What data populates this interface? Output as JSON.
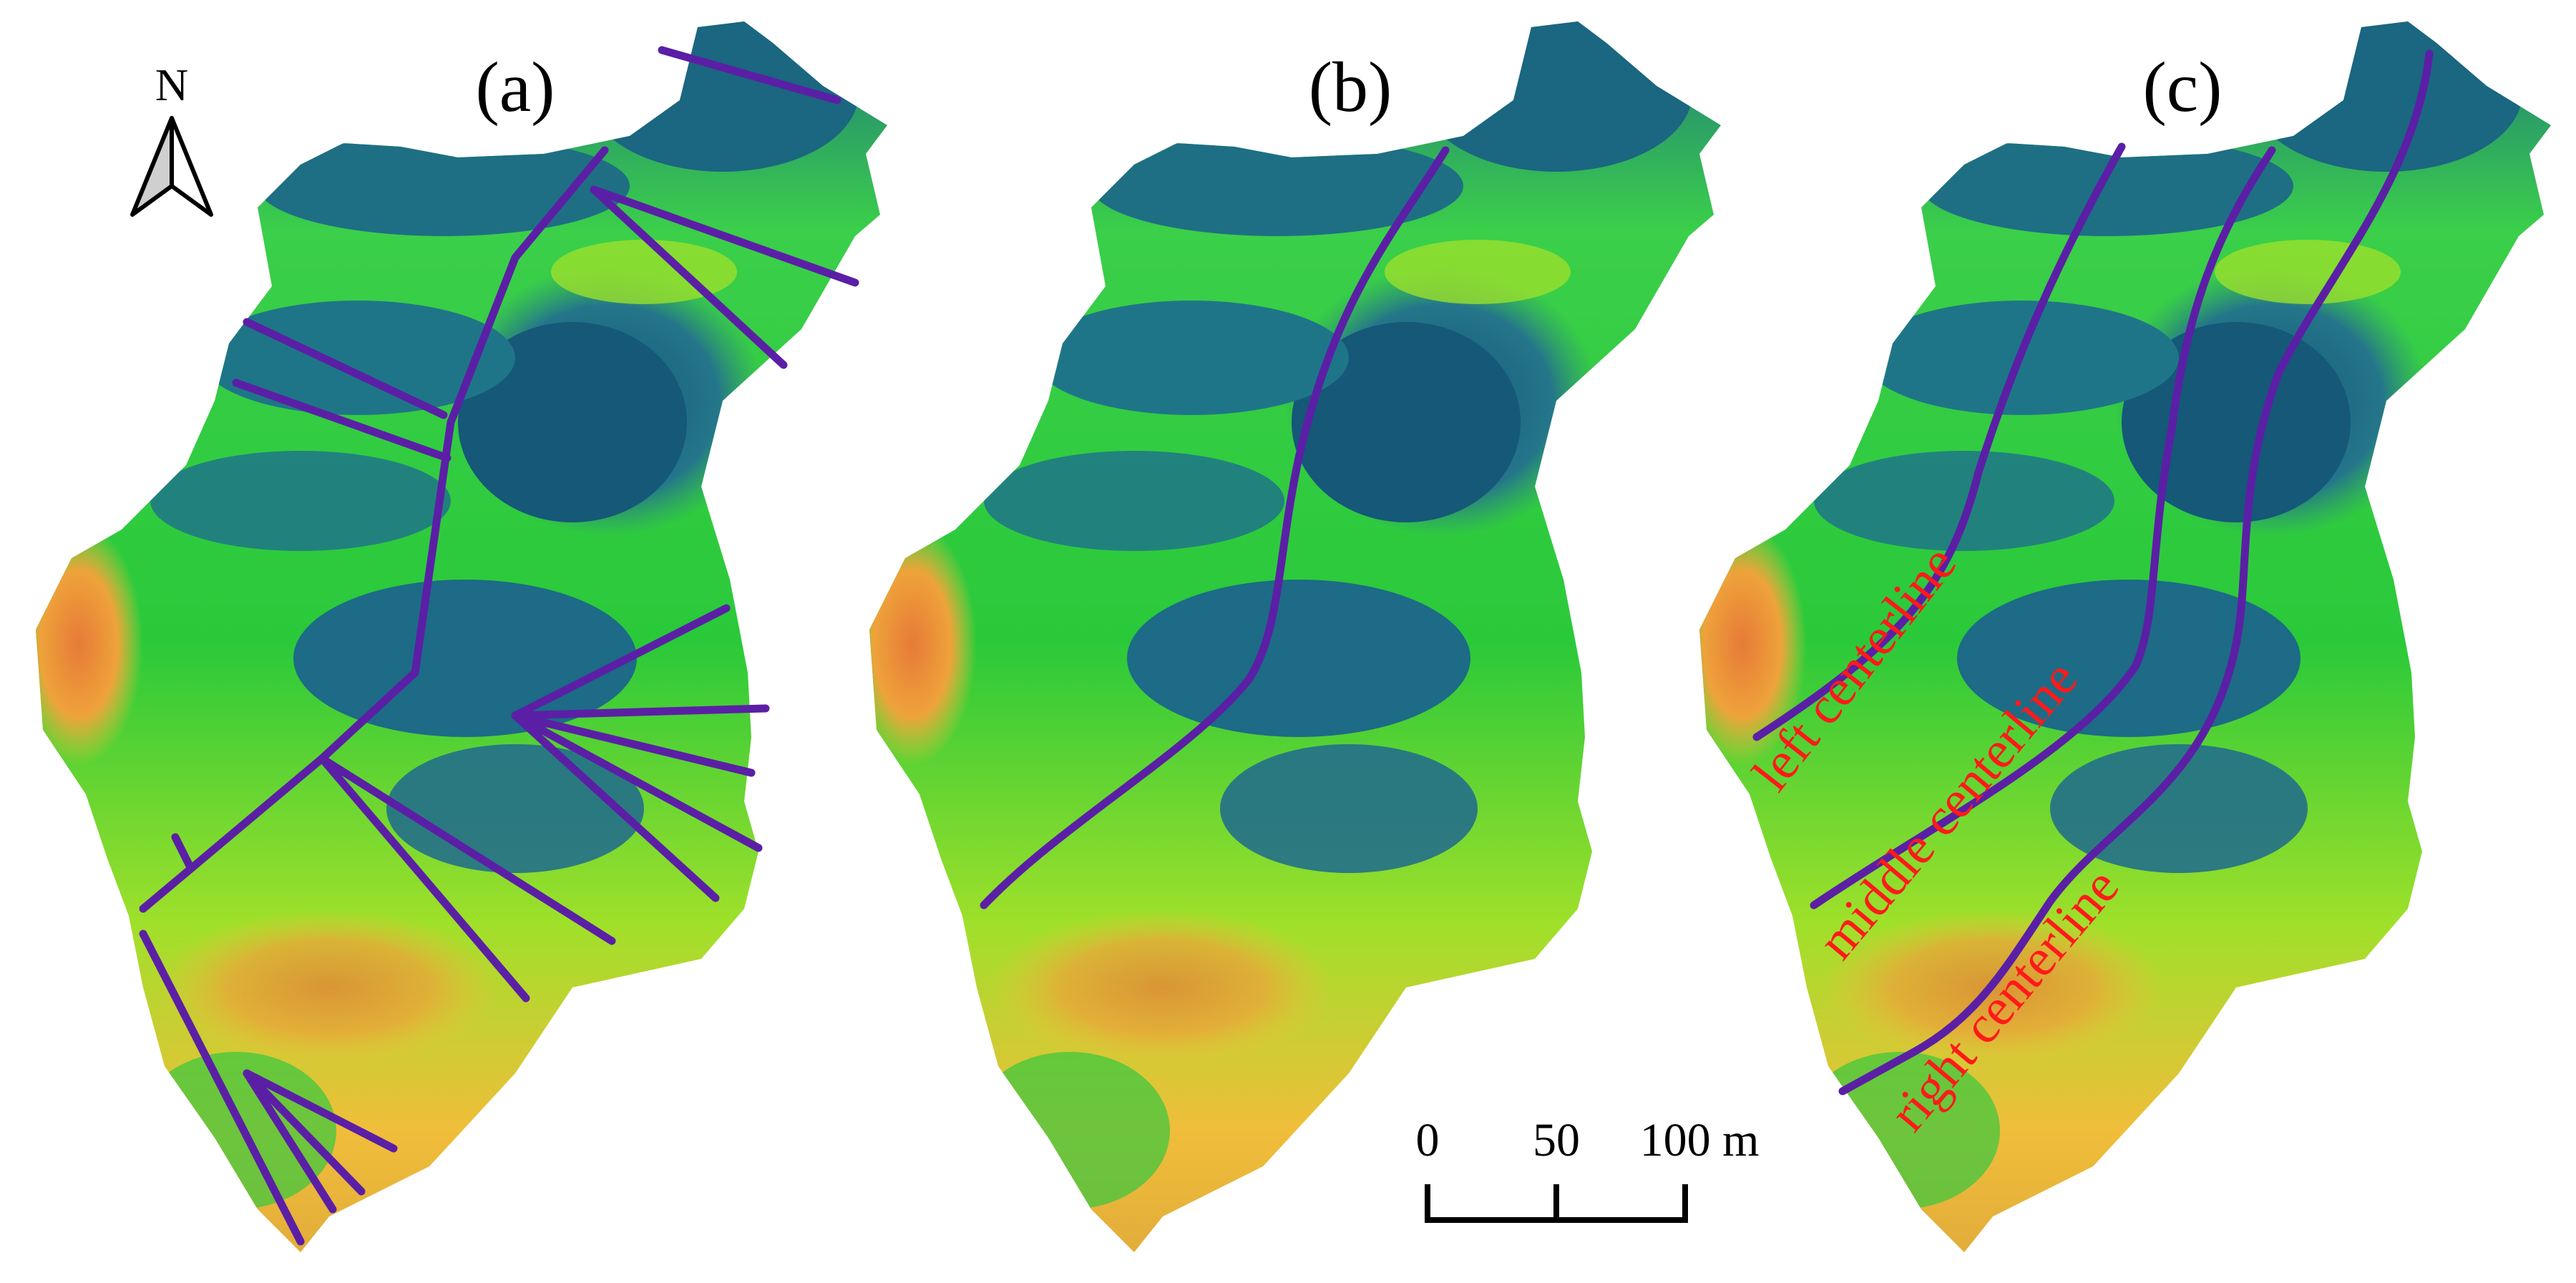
{
  "panels": [
    {
      "label": "(a)"
    },
    {
      "label": "(b)"
    },
    {
      "label": "(c)"
    }
  ],
  "north_arrow": {
    "label": "N",
    "icon": "north-arrow-icon"
  },
  "scale_bar": {
    "ticks": [
      "0",
      "50",
      "100 m"
    ]
  },
  "centerlines": {
    "left": "left centerline",
    "middle": "middle centerline",
    "right": "right centerline"
  },
  "colors": {
    "low": "#0f5a78",
    "mid_low": "#227a8a",
    "mid": "#2fd82f",
    "mid_high": "#a8e32a",
    "high": "#f1c23a",
    "peak": "#e87b3a",
    "route": "#5b1fa6",
    "annotation": "#ff1a1a"
  }
}
